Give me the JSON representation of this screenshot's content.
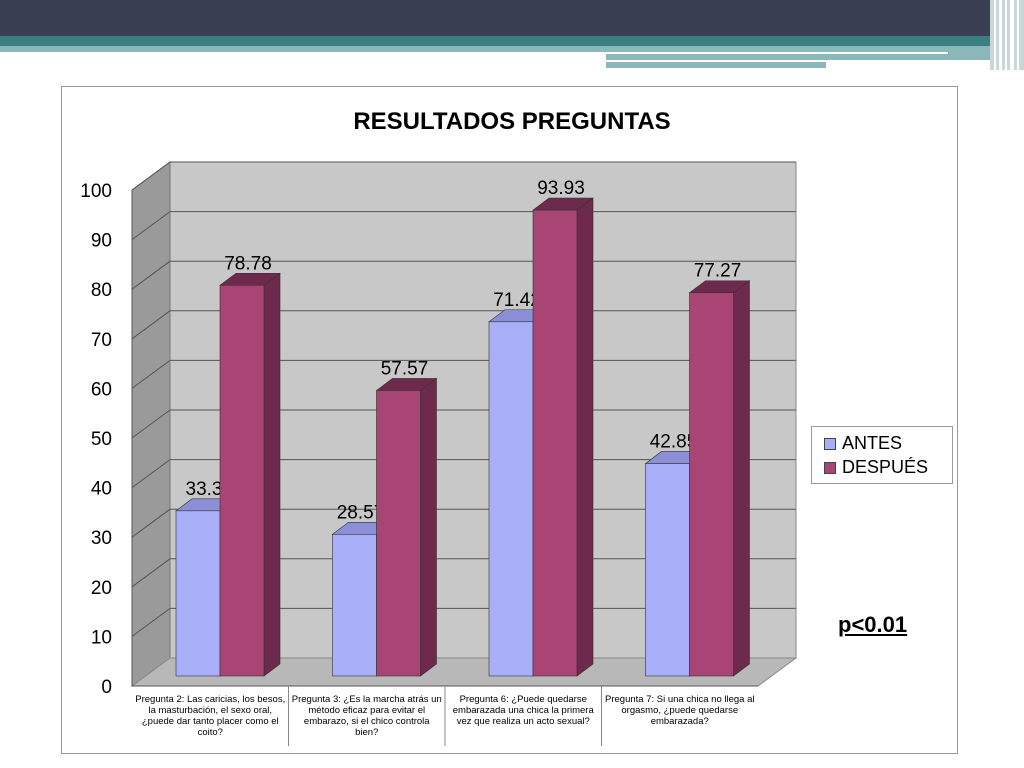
{
  "chart_data": {
    "type": "bar",
    "title": "RESULTADOS PREGUNTAS",
    "categories": [
      "Pregunta 2: Las caricias, los besos, la masturbación, el sexo oral, ¿puede dar tanto placer como el coito?",
      "Pregunta 3: ¿Es la marcha atrás un método eficaz para evitar el embarazo, si el chico controla bien?",
      "Pregunta 6: ¿Puede quedarse embarazada una chica la primera vez que realiza un acto sexual?",
      "Pregunta 7: Si una chica no llega al orgasmo, ¿puede quedarse embarazada?"
    ],
    "series": [
      {
        "name": "ANTES",
        "values": [
          33.3,
          28.57,
          71.42,
          42.85
        ],
        "labels": [
          "33.3",
          "28.57",
          "71.42",
          "42.85"
        ],
        "color": "#a9aef9"
      },
      {
        "name": "DESPUÉS",
        "values": [
          78.78,
          57.57,
          93.93,
          77.27
        ],
        "labels": [
          "78.78",
          "57.57",
          "93.93",
          "77.27"
        ],
        "color": "#a84574"
      }
    ],
    "ylim": [
      0,
      100
    ],
    "yticks": [
      "0",
      "10",
      "20",
      "30",
      "40",
      "50",
      "60",
      "70",
      "80",
      "90",
      "100"
    ],
    "grid": true,
    "legend_position": "right"
  },
  "annotation": "p<0.01",
  "colors": {
    "antes_side": "#8a8fd8",
    "despues_side": "#6e2a4c",
    "wall": "#c8c8c8",
    "floor": "#b8b8b8"
  }
}
